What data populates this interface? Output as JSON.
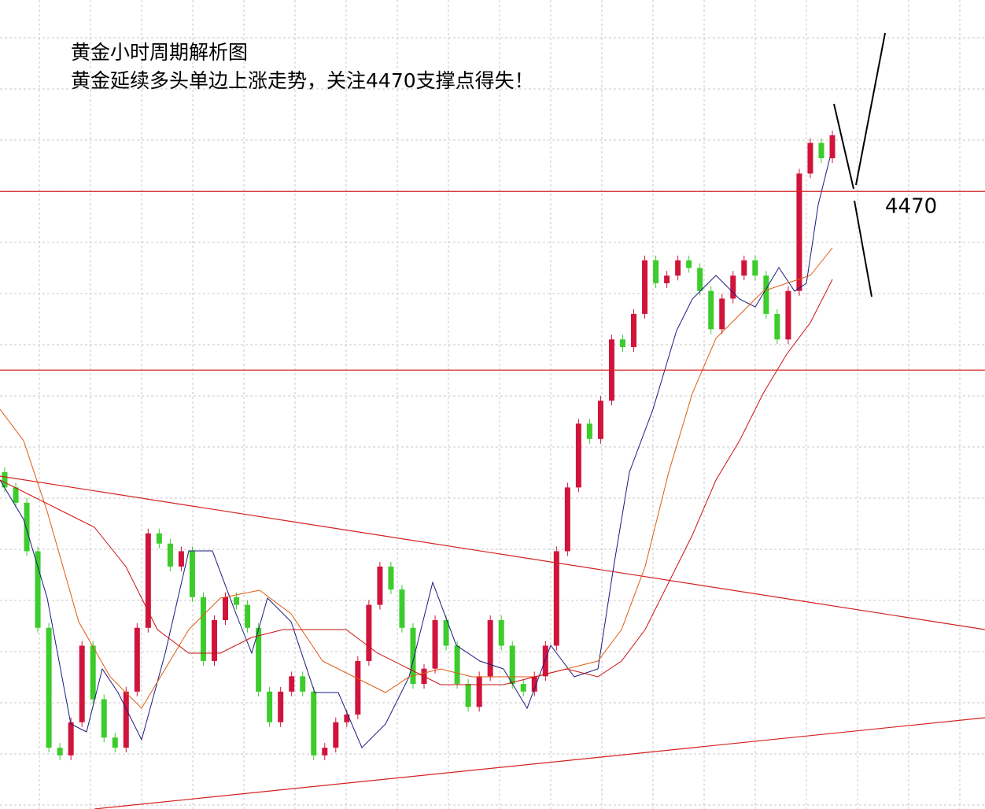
{
  "chart_data": {
    "type": "candlestick",
    "title": "黄金小时周期解析图",
    "subtitle": "黄金延续多头单边上涨走势，关注4470支撑点得失！",
    "ylim": [
      4228,
      4545
    ],
    "levels": [
      4470,
      4400
    ],
    "up_color": "#d0143c",
    "down_color": "#3ccc2c",
    "level_color": "#d42020",
    "open": [
      4360,
      4354,
      4348,
      4329,
      4299,
      4252,
      4249,
      4262,
      4292,
      4271,
      4256,
      4252,
      4274,
      4299,
      4336,
      4332,
      4323,
      4329,
      4311,
      4286,
      4302,
      4311,
      4308,
      4299,
      4274,
      4262,
      4274,
      4280,
      4274,
      4249,
      4252,
      4262,
      4265,
      4286,
      4308,
      4323,
      4314,
      4299,
      4277,
      4283,
      4302,
      4292,
      4277,
      4268,
      4280,
      4302,
      4292,
      4277,
      4274,
      4280,
      4292,
      4329,
      4354,
      4379,
      4373,
      4388,
      4412,
      4409,
      4422,
      4443,
      4434,
      4437,
      4443,
      4440,
      4431,
      4416,
      4428,
      4437,
      4443,
      4437,
      4422,
      4412,
      4431,
      4477,
      4489,
      4483
    ],
    "close": [
      4354,
      4348,
      4329,
      4299,
      4252,
      4249,
      4262,
      4292,
      4271,
      4256,
      4252,
      4274,
      4299,
      4336,
      4332,
      4323,
      4329,
      4311,
      4286,
      4302,
      4311,
      4308,
      4299,
      4274,
      4262,
      4274,
      4280,
      4274,
      4249,
      4252,
      4262,
      4265,
      4286,
      4308,
      4323,
      4314,
      4299,
      4277,
      4283,
      4302,
      4292,
      4277,
      4268,
      4280,
      4302,
      4292,
      4277,
      4274,
      4280,
      4292,
      4329,
      4354,
      4379,
      4373,
      4388,
      4412,
      4409,
      4422,
      4443,
      4434,
      4437,
      4443,
      4440,
      4431,
      4416,
      4428,
      4437,
      4443,
      4437,
      4422,
      4412,
      4431,
      4477,
      4489,
      4483,
      4492
    ]
  }
}
